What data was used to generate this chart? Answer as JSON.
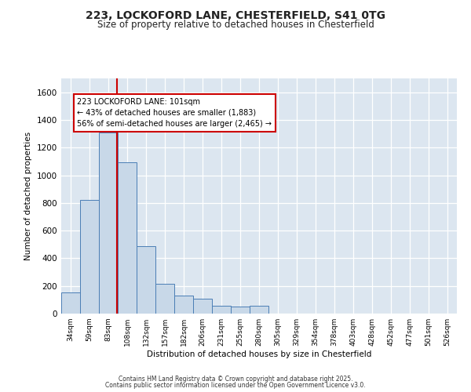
{
  "title_line1": "223, LOCKOFORD LANE, CHESTERFIELD, S41 0TG",
  "title_line2": "Size of property relative to detached houses in Chesterfield",
  "xlabel": "Distribution of detached houses by size in Chesterfield",
  "ylabel": "Number of detached properties",
  "categories": [
    "34sqm",
    "59sqm",
    "83sqm",
    "108sqm",
    "132sqm",
    "157sqm",
    "182sqm",
    "206sqm",
    "231sqm",
    "255sqm",
    "280sqm",
    "305sqm",
    "329sqm",
    "354sqm",
    "378sqm",
    "403sqm",
    "428sqm",
    "452sqm",
    "477sqm",
    "501sqm",
    "526sqm"
  ],
  "values": [
    155,
    820,
    1310,
    1095,
    490,
    215,
    130,
    105,
    55,
    50,
    55,
    0,
    0,
    0,
    0,
    0,
    0,
    0,
    0,
    0,
    0
  ],
  "bar_color": "#c8d8e8",
  "bar_edge_color": "#4a7eb5",
  "background_color": "#dce6f0",
  "grid_color": "#ffffff",
  "vline_x_index": 2.45,
  "vline_color": "#cc0000",
  "annotation_text": "223 LOCKOFORD LANE: 101sqm\n← 43% of detached houses are smaller (1,883)\n56% of semi-detached houses are larger (2,465) →",
  "annotation_box_color": "#ffffff",
  "annotation_box_edge_color": "#cc0000",
  "ylim": [
    0,
    1700
  ],
  "yticks": [
    0,
    200,
    400,
    600,
    800,
    1000,
    1200,
    1400,
    1600
  ],
  "footer_line1": "Contains HM Land Registry data © Crown copyright and database right 2025.",
  "footer_line2": "Contains public sector information licensed under the Open Government Licence v3.0."
}
